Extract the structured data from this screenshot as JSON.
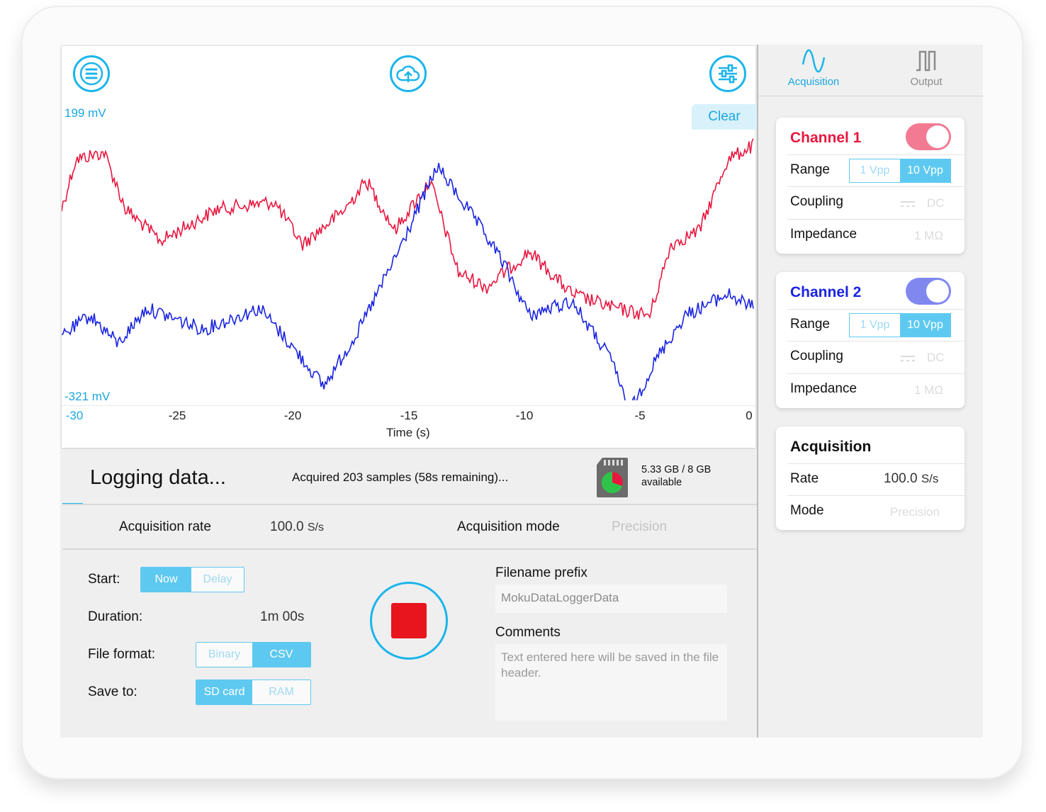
{
  "colors": {
    "accent": "#1ab5ea",
    "channel1": "#e8173f",
    "channel2": "#1a24e0",
    "stop": "#e8151e"
  },
  "plot": {
    "y_max_label": "199 mV",
    "y_min_label": "-321 mV",
    "clear_label": "Clear",
    "x_ticks": [
      "-30",
      "-25",
      "-20",
      "-15",
      "-10",
      "-5",
      "0"
    ],
    "x_title": "Time (s)"
  },
  "toolbar_icons": {
    "menu": "menu-icon",
    "upload": "cloud-upload-icon",
    "settings": "sliders-icon"
  },
  "status": {
    "title": "Logging data...",
    "message": "Acquired 203 samples (58s remaining)...",
    "storage_line1": "5.33 GB / 8 GB",
    "storage_line2": "available",
    "progress_fraction": 0.03
  },
  "acquisition_row": {
    "rate_label": "Acquisition rate",
    "rate_value": "100.0",
    "rate_unit": "S/s",
    "mode_label": "Acquisition mode",
    "mode_value": "Precision"
  },
  "controls": {
    "start_label": "Start:",
    "start_options": [
      "Now",
      "Delay"
    ],
    "duration_label": "Duration:",
    "duration_value": "1m 00s",
    "format_label": "File format:",
    "format_options": [
      "Binary",
      "CSV"
    ],
    "save_label": "Save to:",
    "save_options": [
      "SD card",
      "RAM"
    ],
    "filename_label": "Filename prefix",
    "filename_value": "MokuDataLoggerData",
    "comments_label": "Comments",
    "comments_placeholder": "Text entered here will be saved in the file header."
  },
  "sidebar": {
    "tabs": [
      {
        "label": "Acquisition",
        "icon": "sine-wave-icon"
      },
      {
        "label": "Output",
        "icon": "square-wave-icon"
      }
    ],
    "channel1": {
      "title": "Channel 1",
      "enabled": true,
      "range_label": "Range",
      "range_options": [
        "1 Vpp",
        "10 Vpp"
      ],
      "coupling_label": "Coupling",
      "coupling_value": "DC",
      "impedance_label": "Impedance",
      "impedance_value": "1 MΩ"
    },
    "channel2": {
      "title": "Channel 2",
      "enabled": true,
      "range_label": "Range",
      "range_options": [
        "1 Vpp",
        "10 Vpp"
      ],
      "coupling_label": "Coupling",
      "coupling_value": "DC",
      "impedance_label": "Impedance",
      "impedance_value": "1 MΩ"
    },
    "acquisition": {
      "title": "Acquisition",
      "rate_label": "Rate",
      "rate_value": "100.0",
      "rate_unit": "S/s",
      "mode_label": "Mode",
      "mode_value": "Precision"
    }
  }
}
